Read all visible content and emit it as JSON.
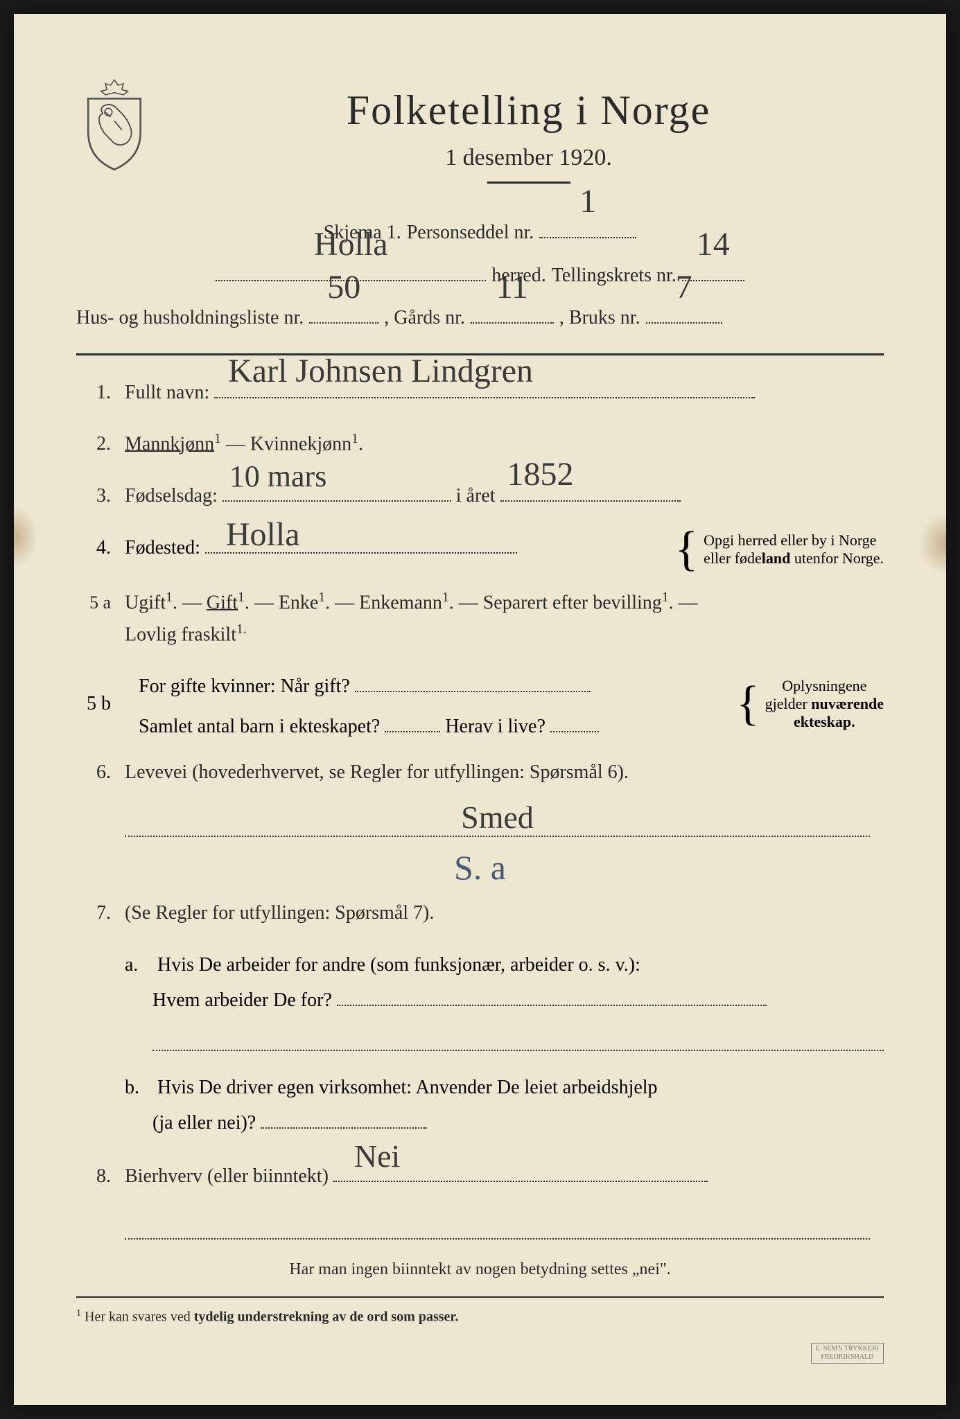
{
  "colors": {
    "paper": "#ede6d0",
    "ink": "#2a2a2a",
    "handwriting": "#3a3a3a",
    "blue_annotation": "#4a5a7a",
    "background": "#1a1a1a"
  },
  "header": {
    "title": "Folketelling  i  Norge",
    "subtitle": "1 desember 1920."
  },
  "form_meta": {
    "schema_label": "Skjema 1.",
    "personseddel_label": "Personseddel nr.",
    "personseddel_value": "1",
    "herred_label": "herred.",
    "herred_value": "Holla",
    "tellingskrets_label": "Tellingskrets nr.",
    "tellingskrets_value": "14",
    "husliste_label": "Hus- og husholdningsliste nr.",
    "husliste_value": "50",
    "gards_label": ", Gårds nr.",
    "gards_value": "11",
    "bruks_label": ", Bruks nr.",
    "bruks_value": "7"
  },
  "q1": {
    "num": "1.",
    "label": "Fullt navn:",
    "value": "Karl Johnsen Lindgren"
  },
  "q2": {
    "num": "2.",
    "male": "Mannkjønn",
    "female": "Kvinnekjønn",
    "sup": "1",
    "separator": " — "
  },
  "q3": {
    "num": "3.",
    "label": "Fødselsdag:",
    "day_value": "10 mars",
    "year_label": "i året",
    "year_value": "1852"
  },
  "q4": {
    "num": "4.",
    "label": "Fødested:",
    "value": "Holla",
    "note_line1": "Opgi herred eller by i Norge",
    "note_line2": "eller fødeland utenfor Norge."
  },
  "q5a": {
    "num": "5 a",
    "options": [
      "Ugift",
      "Gift",
      "Enke",
      "Enkemann",
      "Separert efter bevilling",
      "Lovlig fraskilt"
    ],
    "selected_index": 1,
    "sup": "1",
    "sep": ". — "
  },
  "q5b": {
    "num": "5 b",
    "line1_label": "For gifte kvinner: Når gift?",
    "line2_label": "Samlet antal barn i ekteskapet?",
    "line2b_label": "Herav i live?",
    "note_line1": "Oplysningene",
    "note_line2": "gjelder nuværende",
    "note_line3": "ekteskap."
  },
  "q6": {
    "num": "6.",
    "label": "Levevei (hovederhvervet, se Regler for utfyllingen:  Spørsmål 6).",
    "value": "Smed",
    "annotation": "S. a"
  },
  "q7": {
    "num": "7.",
    "label": "(Se Regler for utfyllingen:  Spørsmål 7).",
    "a_letter": "a.",
    "a_line1": "Hvis De arbeider for andre (som funksjonær, arbeider o. s. v.):",
    "a_line2": "Hvem arbeider De for?",
    "b_letter": "b.",
    "b_line1": "Hvis De driver egen virksomhet:  Anvender De leiet arbeidshjelp",
    "b_line2": "(ja eller nei)?"
  },
  "q8": {
    "num": "8.",
    "label": "Bierhverv (eller biinntekt)",
    "value": "Nei"
  },
  "bottom_note": "Har man ingen biinntekt av nogen betydning settes „nei\".",
  "footnote": {
    "marker": "1",
    "text_plain": "Her kan svares ved ",
    "text_bold": "tydelig understrekning av de ord som passer."
  },
  "printer": {
    "line1": "E. SEM'S TRYKKERI",
    "line2": "FREDRIKSHALD"
  }
}
